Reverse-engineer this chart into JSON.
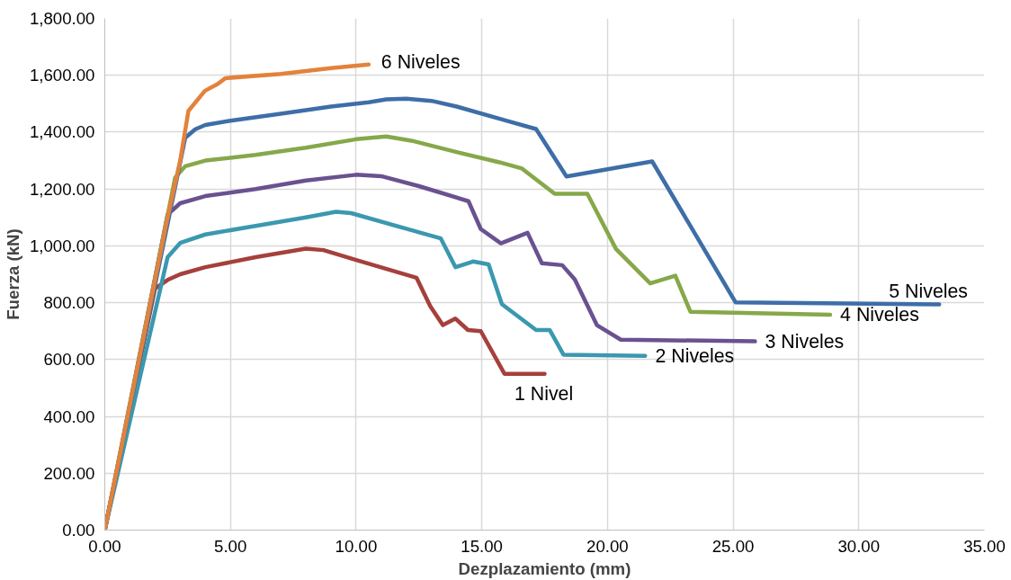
{
  "chart_data": {
    "type": "line",
    "xlabel": "Dezplazamiento (mm)",
    "ylabel": "Fuerza (kN)",
    "xlim": [
      0,
      35
    ],
    "ylim": [
      0,
      1800
    ],
    "xticks": [
      {
        "value": 0,
        "label": "0.00"
      },
      {
        "value": 5,
        "label": "5.00"
      },
      {
        "value": 10,
        "label": "10.00"
      },
      {
        "value": 15,
        "label": "15.00"
      },
      {
        "value": 20,
        "label": "20.00"
      },
      {
        "value": 25,
        "label": "25.00"
      },
      {
        "value": 30,
        "label": "30.00"
      },
      {
        "value": 35,
        "label": "35.00"
      }
    ],
    "yticks": [
      {
        "value": 0,
        "label": "0.00"
      },
      {
        "value": 200,
        "label": "200.00"
      },
      {
        "value": 400,
        "label": "400.00"
      },
      {
        "value": 600,
        "label": "600.00"
      },
      {
        "value": 800,
        "label": "800.00"
      },
      {
        "value": 1000,
        "label": "1,000.00"
      },
      {
        "value": 1200,
        "label": "1,200.00"
      },
      {
        "value": 1400,
        "label": "1,400.00"
      },
      {
        "value": 1600,
        "label": "1,600.00"
      },
      {
        "value": 1800,
        "label": "1,800.00"
      }
    ],
    "grid": true,
    "marker": "none",
    "line_style": "solid",
    "series": [
      {
        "name": "1 Nivel",
        "color": "#a5403c",
        "x": [
          0,
          2,
          2.5,
          3,
          4,
          6,
          8,
          8.7,
          10,
          12.4,
          12.95,
          13.45,
          13.95,
          14.45,
          14.96,
          15.9,
          17.5
        ],
        "values": [
          0,
          850,
          880,
          900,
          925,
          960,
          990,
          985,
          950,
          888,
          788,
          721,
          744,
          704,
          700,
          550,
          550
        ]
      },
      {
        "name": "2 Niveles",
        "color": "#3b98b0",
        "x": [
          0,
          2.5,
          3,
          4,
          6,
          8,
          9.2,
          9.8,
          12,
          13.37,
          13.95,
          14.65,
          15.27,
          15.8,
          17.16,
          17.7,
          18.25,
          21.5
        ],
        "values": [
          0,
          960,
          1010,
          1040,
          1070,
          1100,
          1120,
          1115,
          1060,
          1026,
          925,
          945,
          935,
          795,
          704,
          704,
          617,
          613
        ]
      },
      {
        "name": "3 Niveles",
        "color": "#6a5190",
        "x": [
          0,
          2.5,
          3,
          4,
          6,
          8,
          10,
          11,
          12.5,
          14.47,
          14.96,
          15.76,
          16.82,
          17.39,
          18.2,
          18.7,
          19.58,
          20.53,
          25.87
        ],
        "values": [
          0,
          1110,
          1150,
          1175,
          1200,
          1230,
          1250,
          1245,
          1210,
          1157,
          1059,
          1009,
          1046,
          939,
          932,
          882,
          721,
          670,
          664
        ]
      },
      {
        "name": "4 Niveles",
        "color": "#86a84a",
        "x": [
          0,
          2.8,
          3.2,
          4,
          6,
          8,
          10,
          11.2,
          12.2,
          14,
          15.7,
          16.6,
          17.9,
          19.2,
          20.34,
          21.7,
          22.7,
          23.3,
          28.86
        ],
        "values": [
          0,
          1240,
          1280,
          1300,
          1320,
          1345,
          1375,
          1385,
          1370,
          1330,
          1294,
          1272,
          1183,
          1183,
          989,
          868,
          895,
          768,
          758
        ]
      },
      {
        "name": "5 Niveles",
        "color": "#3e6ea8",
        "x": [
          0,
          3.2,
          3.6,
          4,
          5,
          7,
          9,
          10.5,
          11.2,
          12,
          13,
          14,
          16,
          17.16,
          18.37,
          21.78,
          25.1,
          33.2
        ],
        "values": [
          0,
          1380,
          1410,
          1425,
          1440,
          1465,
          1490,
          1505,
          1515,
          1518,
          1510,
          1490,
          1440,
          1411,
          1244,
          1297,
          801,
          794
        ]
      },
      {
        "name": "6 Niveles",
        "color": "#e3823a",
        "x": [
          0,
          2.5,
          3,
          3.33,
          3.98,
          4.5,
          4.8,
          7,
          9,
          10.5
        ],
        "values": [
          0,
          1100,
          1300,
          1475,
          1545,
          1570,
          1590,
          1605,
          1625,
          1638
        ]
      }
    ]
  }
}
